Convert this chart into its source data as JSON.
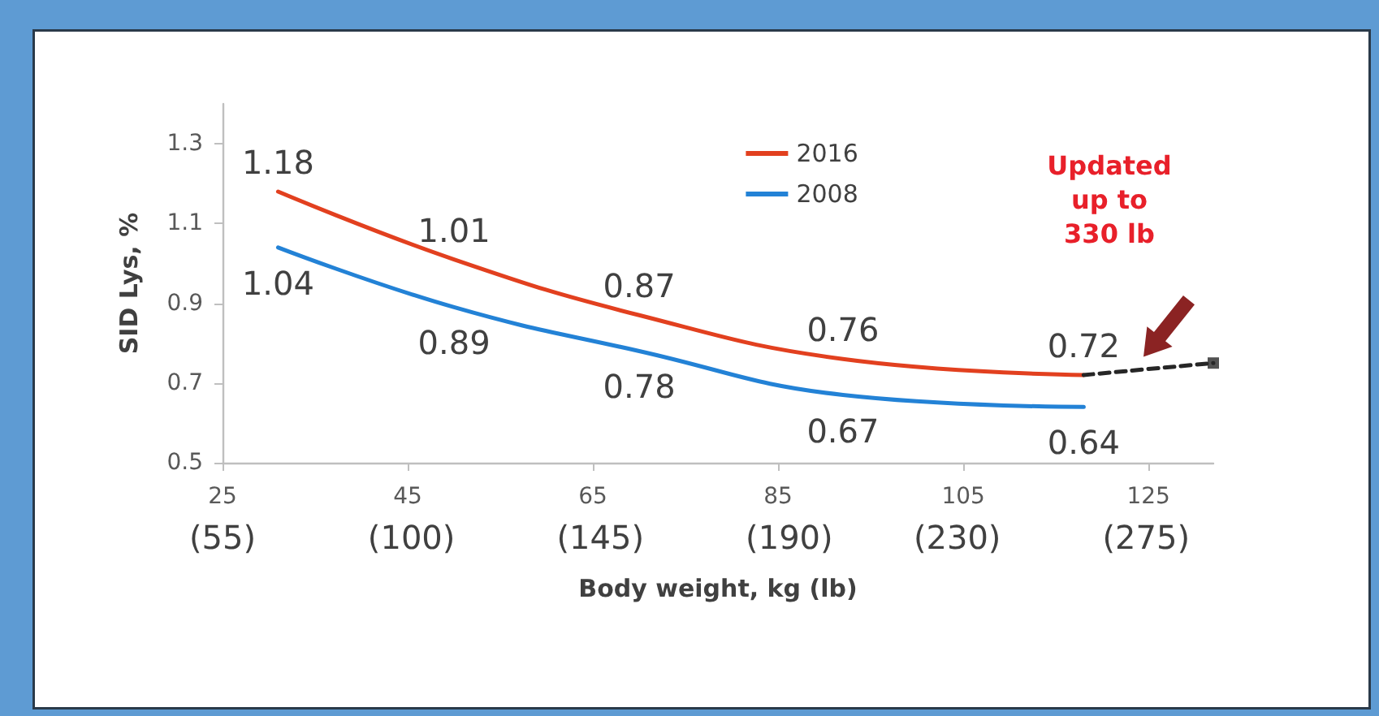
{
  "chart_data": {
    "type": "line",
    "xlabel": "Body weight, kg (lb)",
    "ylabel": "SID Lys, %",
    "xlim": [
      25,
      132
    ],
    "xticks": [
      25,
      45,
      65,
      85,
      105,
      125
    ],
    "x2lim": [
      55,
      291
    ],
    "x2ticks": [
      {
        "value": 55,
        "label": "(55)"
      },
      {
        "value": 100,
        "label": "(100)"
      },
      {
        "value": 145,
        "label": "(145)"
      },
      {
        "value": 190,
        "label": "(190)"
      },
      {
        "value": 230,
        "label": "(230)"
      },
      {
        "value": 275,
        "label": "(275)"
      }
    ],
    "ylim": [
      0.5,
      1.4
    ],
    "yticks": [
      0.5,
      0.7,
      0.9,
      1.1,
      1.3
    ],
    "grid": false,
    "legend": "top",
    "marker": "none",
    "line_style": "solid",
    "annotations": [
      "Updated\nup to\n330 lb"
    ],
    "series": [
      {
        "name": "2016",
        "color": "#e2401f",
        "x": [
          31,
          50,
          70,
          92,
          118
        ],
        "values": [
          1.18,
          1.01,
          0.87,
          0.76,
          0.72
        ],
        "value_labels": [
          "1.18",
          "1.01",
          "0.87",
          "0.76",
          "0.72"
        ]
      },
      {
        "name": "2008",
        "color": "#2382d6",
        "x": [
          31,
          50,
          70,
          92,
          118
        ],
        "values": [
          1.04,
          0.89,
          0.78,
          0.67,
          0.64
        ],
        "value_labels": [
          "1.04",
          "0.89",
          "0.78",
          "0.67",
          "0.64"
        ]
      },
      {
        "color": "#262626",
        "x": [
          118,
          132
        ],
        "values": [
          0.72,
          0.75
        ],
        "line_style": "dashed",
        "marker": "none"
      },
      {
        "type": "scatter",
        "color": "#262626",
        "x": [
          132
        ],
        "values": [
          0.75
        ],
        "marker": "square"
      }
    ]
  }
}
